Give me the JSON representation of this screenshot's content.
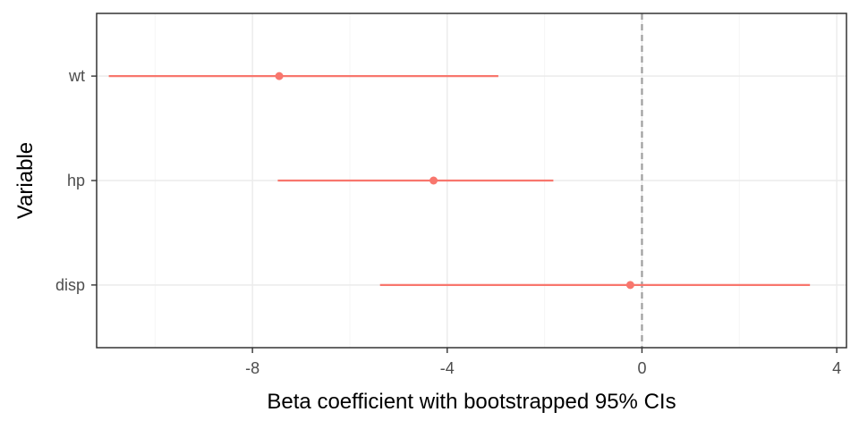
{
  "chart_data": {
    "type": "scatter",
    "subtype": "coefficient-interval-plot",
    "title": "",
    "xlabel": "Beta coefficient with bootstrapped 95% CIs",
    "ylabel": "Variable",
    "xlim": [
      -11.2,
      4.2
    ],
    "x_ticks": [
      -8,
      -4,
      0,
      4
    ],
    "x_tick_labels": [
      "-8",
      "-4",
      "0",
      "4"
    ],
    "categories": [
      "wt",
      "hp",
      "disp"
    ],
    "estimates": [
      -7.45,
      -4.28,
      -0.24
    ],
    "ci_lower": [
      -10.95,
      -7.48,
      -5.38
    ],
    "ci_upper": [
      -2.95,
      -1.82,
      3.45
    ],
    "reference_line": {
      "x": 0,
      "style": "dashed"
    },
    "grid": true,
    "legend": "none",
    "colors": {
      "series": "#f8766d",
      "reference_line": "#9e9e9e",
      "grid_major": "#ebebeb",
      "grid_minor": "#f5f5f5",
      "panel_border": "#333333",
      "tick_text": "#4d4d4d"
    }
  }
}
